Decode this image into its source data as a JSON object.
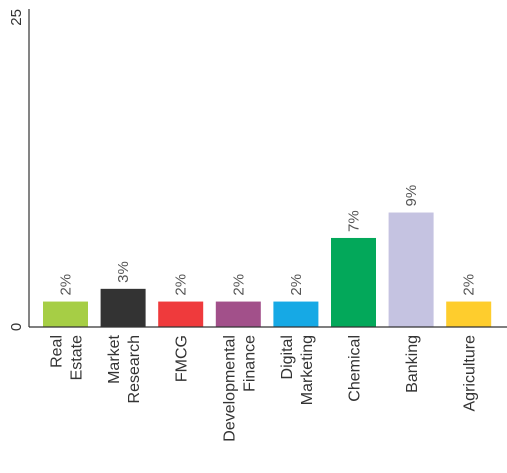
{
  "chart_data": {
    "type": "bar",
    "categories": [
      [
        "Real",
        "Estate"
      ],
      [
        "Market",
        "Research"
      ],
      [
        "FMCG"
      ],
      [
        "Developmental",
        "Finance"
      ],
      [
        "Digital",
        "Marketing"
      ],
      [
        "Chemical"
      ],
      [
        "Banking"
      ],
      [
        "Agriculture"
      ]
    ],
    "values": [
      2,
      3,
      2,
      2,
      2,
      7,
      9,
      2
    ],
    "data_labels": [
      "2%",
      "3%",
      "2%",
      "2%",
      "2%",
      "7%",
      "9%",
      "2%"
    ],
    "colors": [
      "#a6ce45",
      "#333333",
      "#ef3a3c",
      "#a2508a",
      "#16a9e5",
      "#03a85a",
      "#c5c3e1",
      "#fecd2d"
    ],
    "y_ticks": [
      0,
      25
    ],
    "y_tick_labels": [
      "0",
      "25"
    ],
    "ylim": [
      0,
      25
    ],
    "grid": false,
    "legend": "none",
    "title": "",
    "xlabel": "",
    "ylabel": ""
  }
}
